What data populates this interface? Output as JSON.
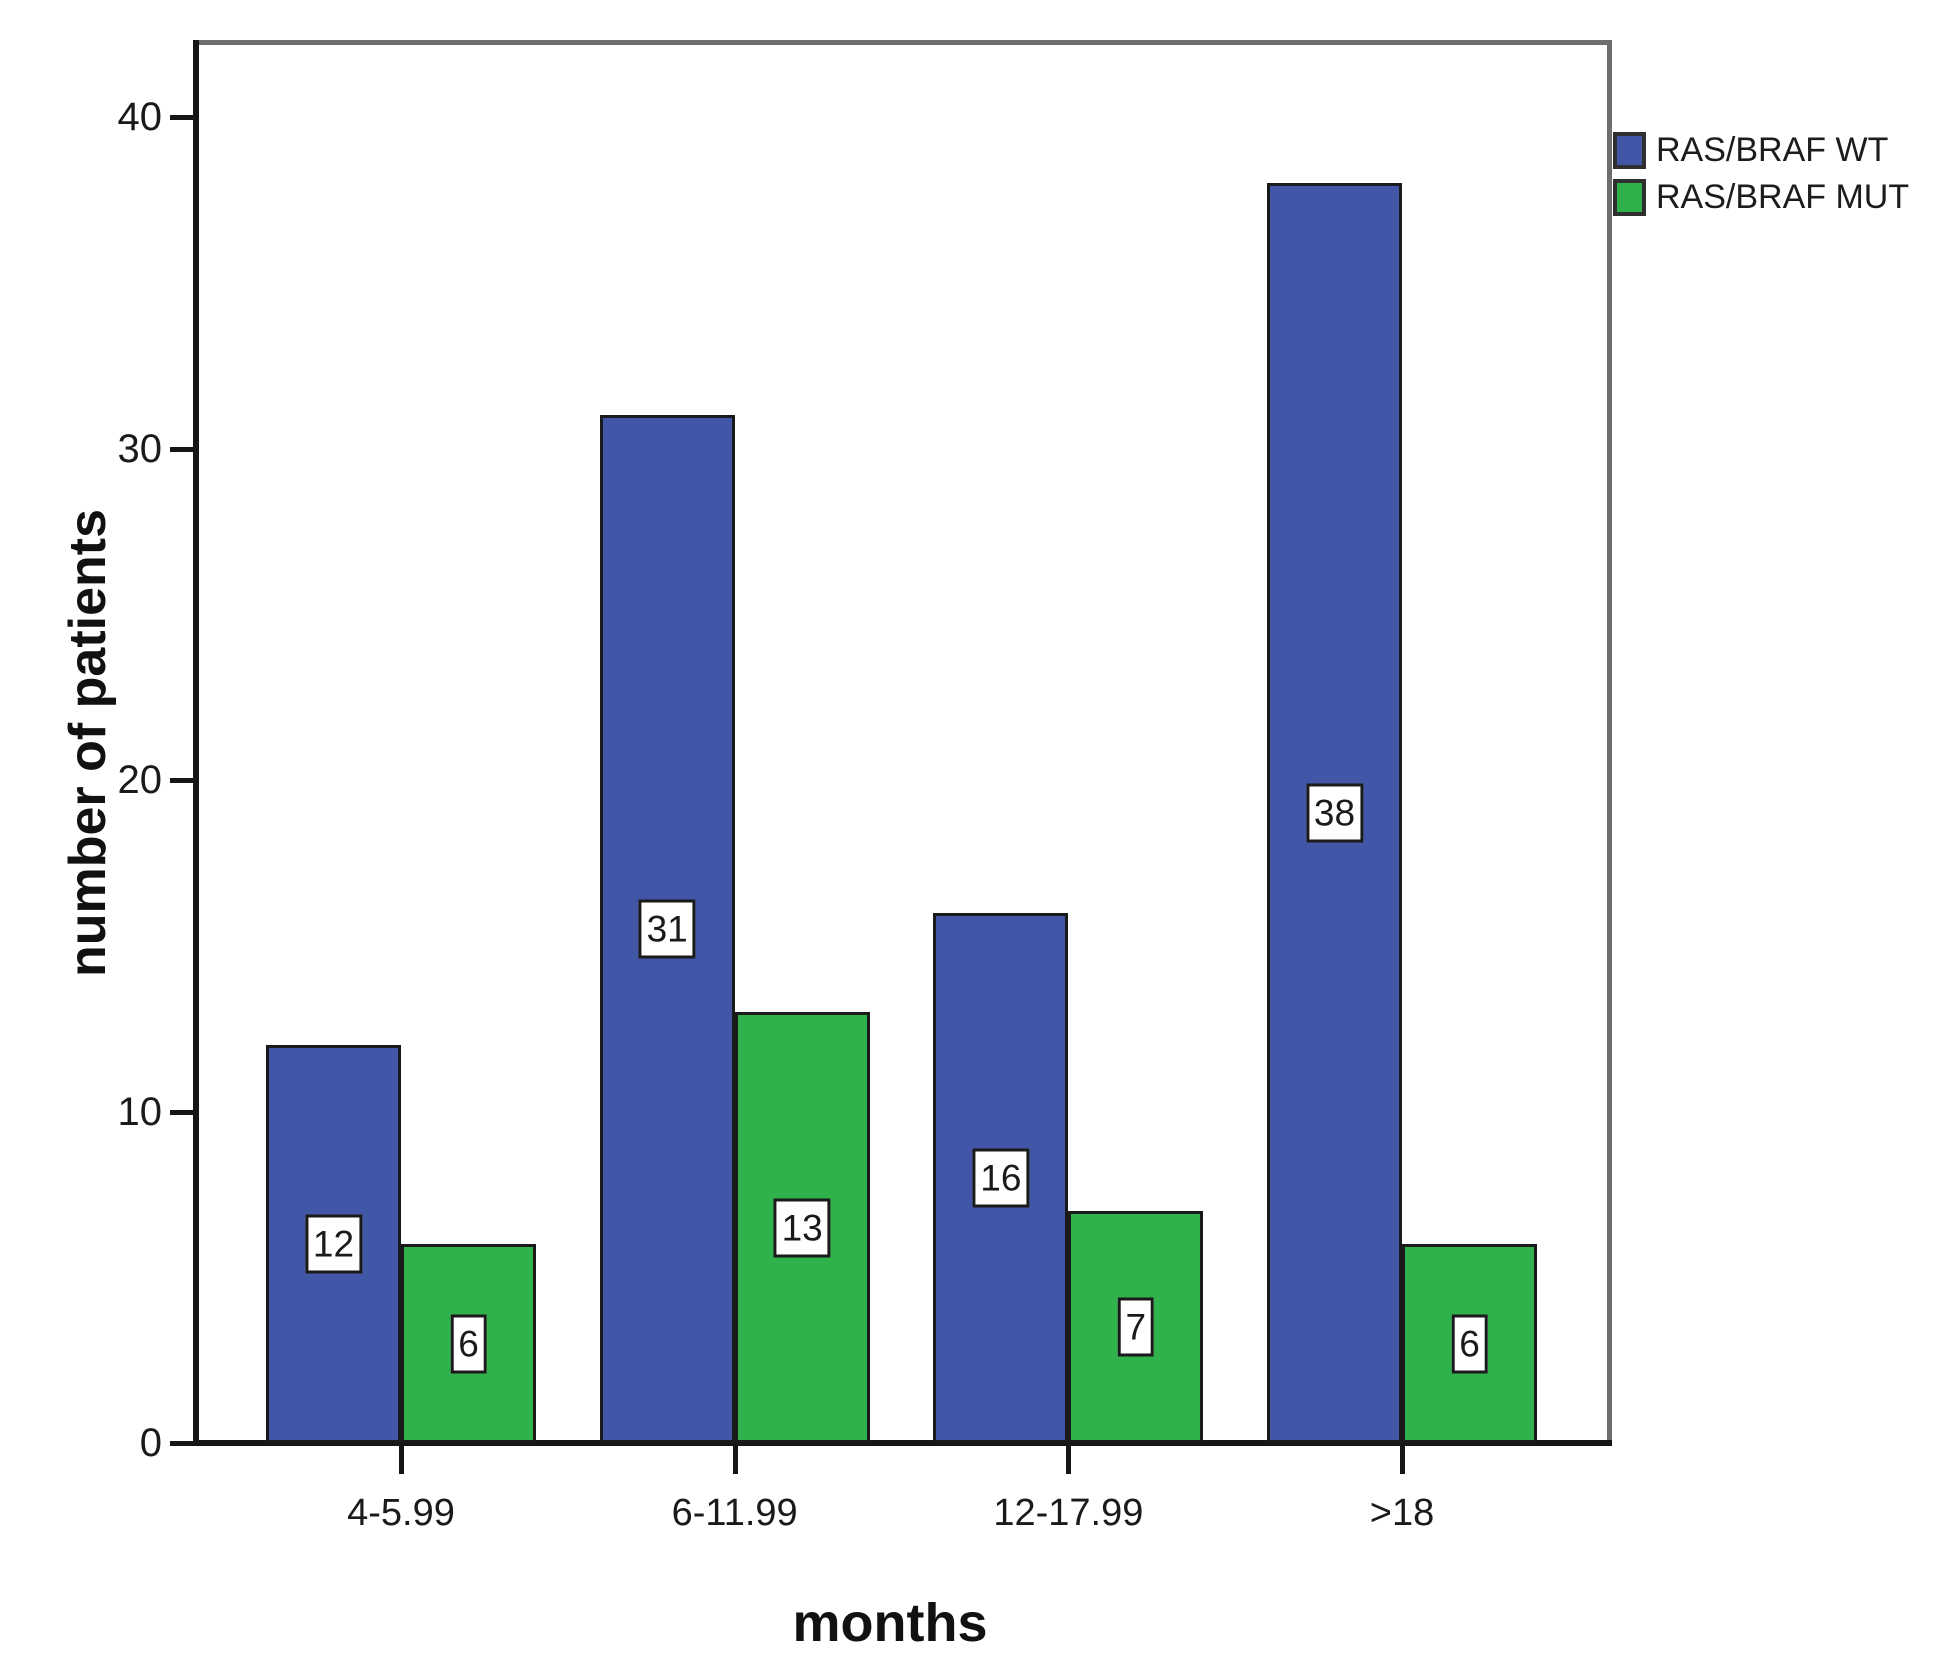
{
  "chart_data": {
    "type": "bar",
    "title": "",
    "xlabel": "months",
    "ylabel": "number of patients",
    "categories": [
      "4-5.99",
      "6-11.99",
      "12-17.99",
      ">18"
    ],
    "series": [
      {
        "name": "RAS/BRAF WT",
        "color": "#4156a6",
        "values": [
          12,
          31,
          16,
          38
        ]
      },
      {
        "name": "RAS/BRAF MUT",
        "color": "#2fb14c",
        "values": [
          6,
          13,
          7,
          6
        ]
      }
    ],
    "bar_value_labels": true,
    "y_ticks": [
      0,
      10,
      20,
      30,
      40
    ],
    "ylim": [
      0,
      42.2
    ],
    "grid": false,
    "legend_position": "top-right-outside",
    "colors": {
      "axis": "#161616",
      "frame": "#6e6e6e",
      "bar_border": "#1a1a1a",
      "label_box_bg": "#ffffff",
      "text": "#1a1a1a"
    }
  }
}
